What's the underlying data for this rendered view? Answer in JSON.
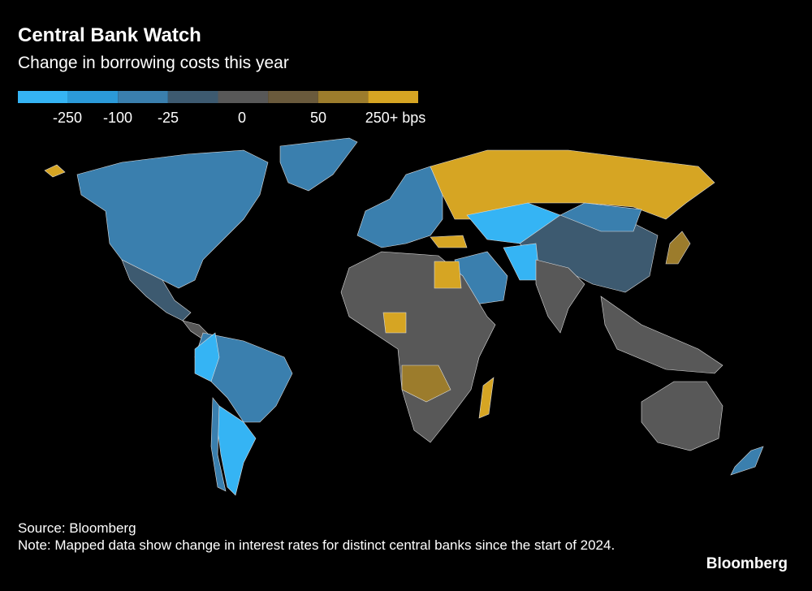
{
  "header": {
    "title": "Central Bank Watch",
    "subtitle": "Change in borrowing costs this year"
  },
  "legend": {
    "colors": [
      "#35b4f4",
      "#2b9ad9",
      "#3a7fae",
      "#3d5a70",
      "#585858",
      "#6a5a3c",
      "#9c7c2c",
      "#d6a523"
    ],
    "labels": [
      "-250",
      "-100",
      "-25",
      "0",
      "50",
      "250+ bps"
    ]
  },
  "footer": {
    "source": "Source: Bloomberg",
    "note": "Note: Mapped data show change in interest rates for distinct central banks since the start of 2024.",
    "brand": "Bloomberg"
  }
}
